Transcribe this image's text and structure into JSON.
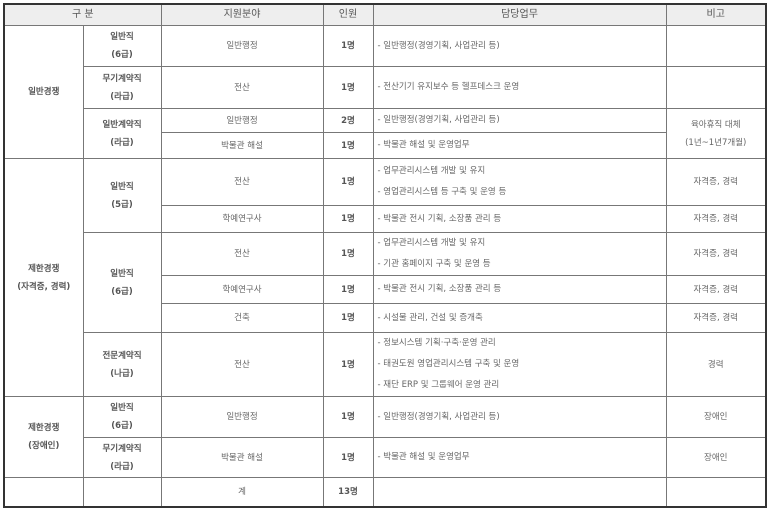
{
  "header": {
    "category": "구 분",
    "field": "지원분야",
    "count": "인원",
    "duty": "담당업무",
    "note": "비고"
  },
  "groups": {
    "g1": "일반경쟁",
    "g2a": "제한경쟁",
    "g2b": "(자격증, 경력)",
    "g3a": "제한경쟁",
    "g3b": "(장애인)"
  },
  "rows": [
    {
      "type1": "일반직",
      "type2": "(6급)",
      "field": "일반행정",
      "count": "1명",
      "duties": [
        "- 일반행정(경영기획, 사업관리 등)"
      ],
      "note": ""
    },
    {
      "type1": "무기계약직",
      "type2": "(라급)",
      "field": "전산",
      "count": "1명",
      "duties": [
        "- 전산기기 유지보수 등 헬프데스크 운영"
      ],
      "note": ""
    },
    {
      "type1": "일반계약직",
      "type2": "(라급)",
      "field": "일반행정",
      "count": "2명",
      "duties": [
        "- 일반행정(경영기획, 사업관리 등)"
      ],
      "note": "육아휴직 대체",
      "note2": "(1년~1년7개월)"
    },
    {
      "field": "박물관 해설",
      "count": "1명",
      "duties": [
        "- 박물관 해설 및 운영업무"
      ]
    },
    {
      "type1": "일반직",
      "type2": "(5급)",
      "field": "전산",
      "count": "1명",
      "duties": [
        "- 업무관리시스템 개발 및 유지",
        "- 영업관리시스템 등 구축 및 운영 등"
      ],
      "note": "자격증, 경력"
    },
    {
      "field": "학예연구사",
      "count": "1명",
      "duties": [
        "- 박물관 전시 기획, 소장품 관리 등"
      ],
      "note": "자격증, 경력"
    },
    {
      "type1": "일반직",
      "type2": "(6급)",
      "field": "전산",
      "count": "1명",
      "duties": [
        "- 업무관리시스템 개발 및 유지",
        "- 기관 홈페이지 구축 및 운영 등"
      ],
      "note": "자격증, 경력"
    },
    {
      "field": "학예연구사",
      "count": "1명",
      "duties": [
        "- 박물관 전시 기획, 소장품 관리 등"
      ],
      "note": "자격증, 경력"
    },
    {
      "field": "건축",
      "count": "1명",
      "duties": [
        "- 시설물 관리, 건설 및 증개축"
      ],
      "note": "자격증, 경력"
    },
    {
      "type1": "전문계약직",
      "type2": "(나급)",
      "field": "전산",
      "count": "1명",
      "duties": [
        "- 정보시스템 기획·구축·운영 관리",
        "- 태권도원 영업관리시스템 구축 및 운영",
        "- 재단 ERP 및 그룹웨어 운영 관리"
      ],
      "note": "경력"
    },
    {
      "type1": "일반직",
      "type2": "(6급)",
      "field": "일반행정",
      "count": "1명",
      "duties": [
        "- 일반행정(경영기획, 사업관리 등)"
      ],
      "note": "장애인"
    },
    {
      "type1": "무기계약직",
      "type2": "(라급)",
      "field": "박물관 해설",
      "count": "1명",
      "duties": [
        "- 박물관 해설 및 운영업무"
      ],
      "note": "장애인"
    }
  ],
  "total": {
    "label": "계",
    "count": "13명"
  }
}
